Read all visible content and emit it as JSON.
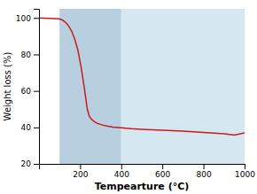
{
  "chart_data": {
    "type": "line",
    "xlabel": "Tempearture (°C)",
    "ylabel": "Weight loss (%)",
    "x": [
      0,
      100,
      115,
      130,
      145,
      160,
      175,
      190,
      205,
      220,
      235,
      245,
      255,
      265,
      275,
      285,
      295,
      310,
      330,
      360,
      400,
      450,
      500,
      600,
      700,
      800,
      900,
      950,
      1000
    ],
    "values": [
      100,
      99.5,
      98.8,
      97.5,
      95.5,
      92.5,
      88.0,
      82.0,
      73.0,
      62.0,
      50.0,
      46.0,
      44.5,
      43.5,
      42.8,
      42.2,
      41.8,
      41.3,
      40.8,
      40.2,
      39.8,
      39.3,
      39.0,
      38.5,
      38.0,
      37.2,
      36.5,
      35.8,
      37.0
    ],
    "color": "#cc1a1a",
    "zones": [
      {
        "x": [
          100,
          400
        ],
        "color": "#b8cfe0"
      },
      {
        "x": [
          400,
          1000
        ],
        "color": "#d5e8f2"
      }
    ],
    "xlim": [
      0,
      1000
    ],
    "ylim": [
      20,
      105
    ],
    "xticks": [
      200,
      400,
      600,
      800,
      1000
    ],
    "yticks": [
      20,
      40,
      60,
      80,
      100
    ],
    "grid": false
  }
}
